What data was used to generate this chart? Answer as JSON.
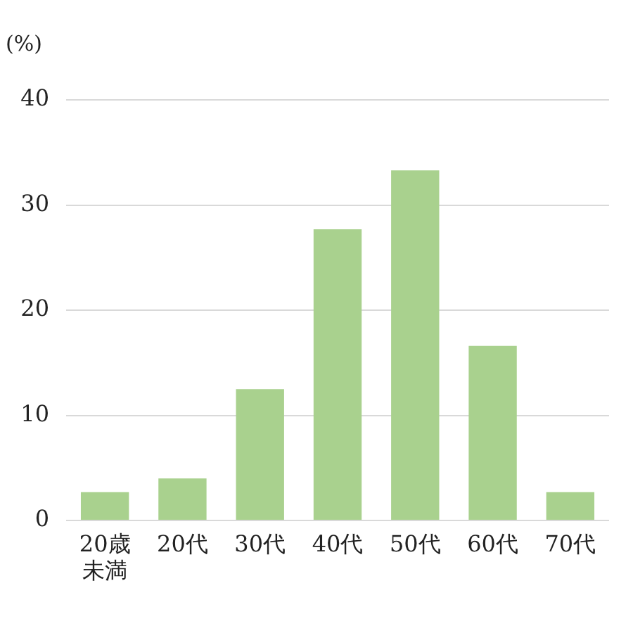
{
  "chart_data": {
    "type": "bar",
    "ylabel": "(%)",
    "categories": [
      "20歳未満",
      "20代",
      "30代",
      "40代",
      "50代",
      "60代",
      "70代"
    ],
    "values": [
      2.7,
      4.0,
      12.5,
      27.7,
      33.3,
      16.6,
      2.7
    ],
    "color": "#a9d18e",
    "ylim": [
      0,
      40
    ],
    "yticks": [
      0,
      10,
      20,
      30,
      40
    ],
    "grid": "y"
  }
}
